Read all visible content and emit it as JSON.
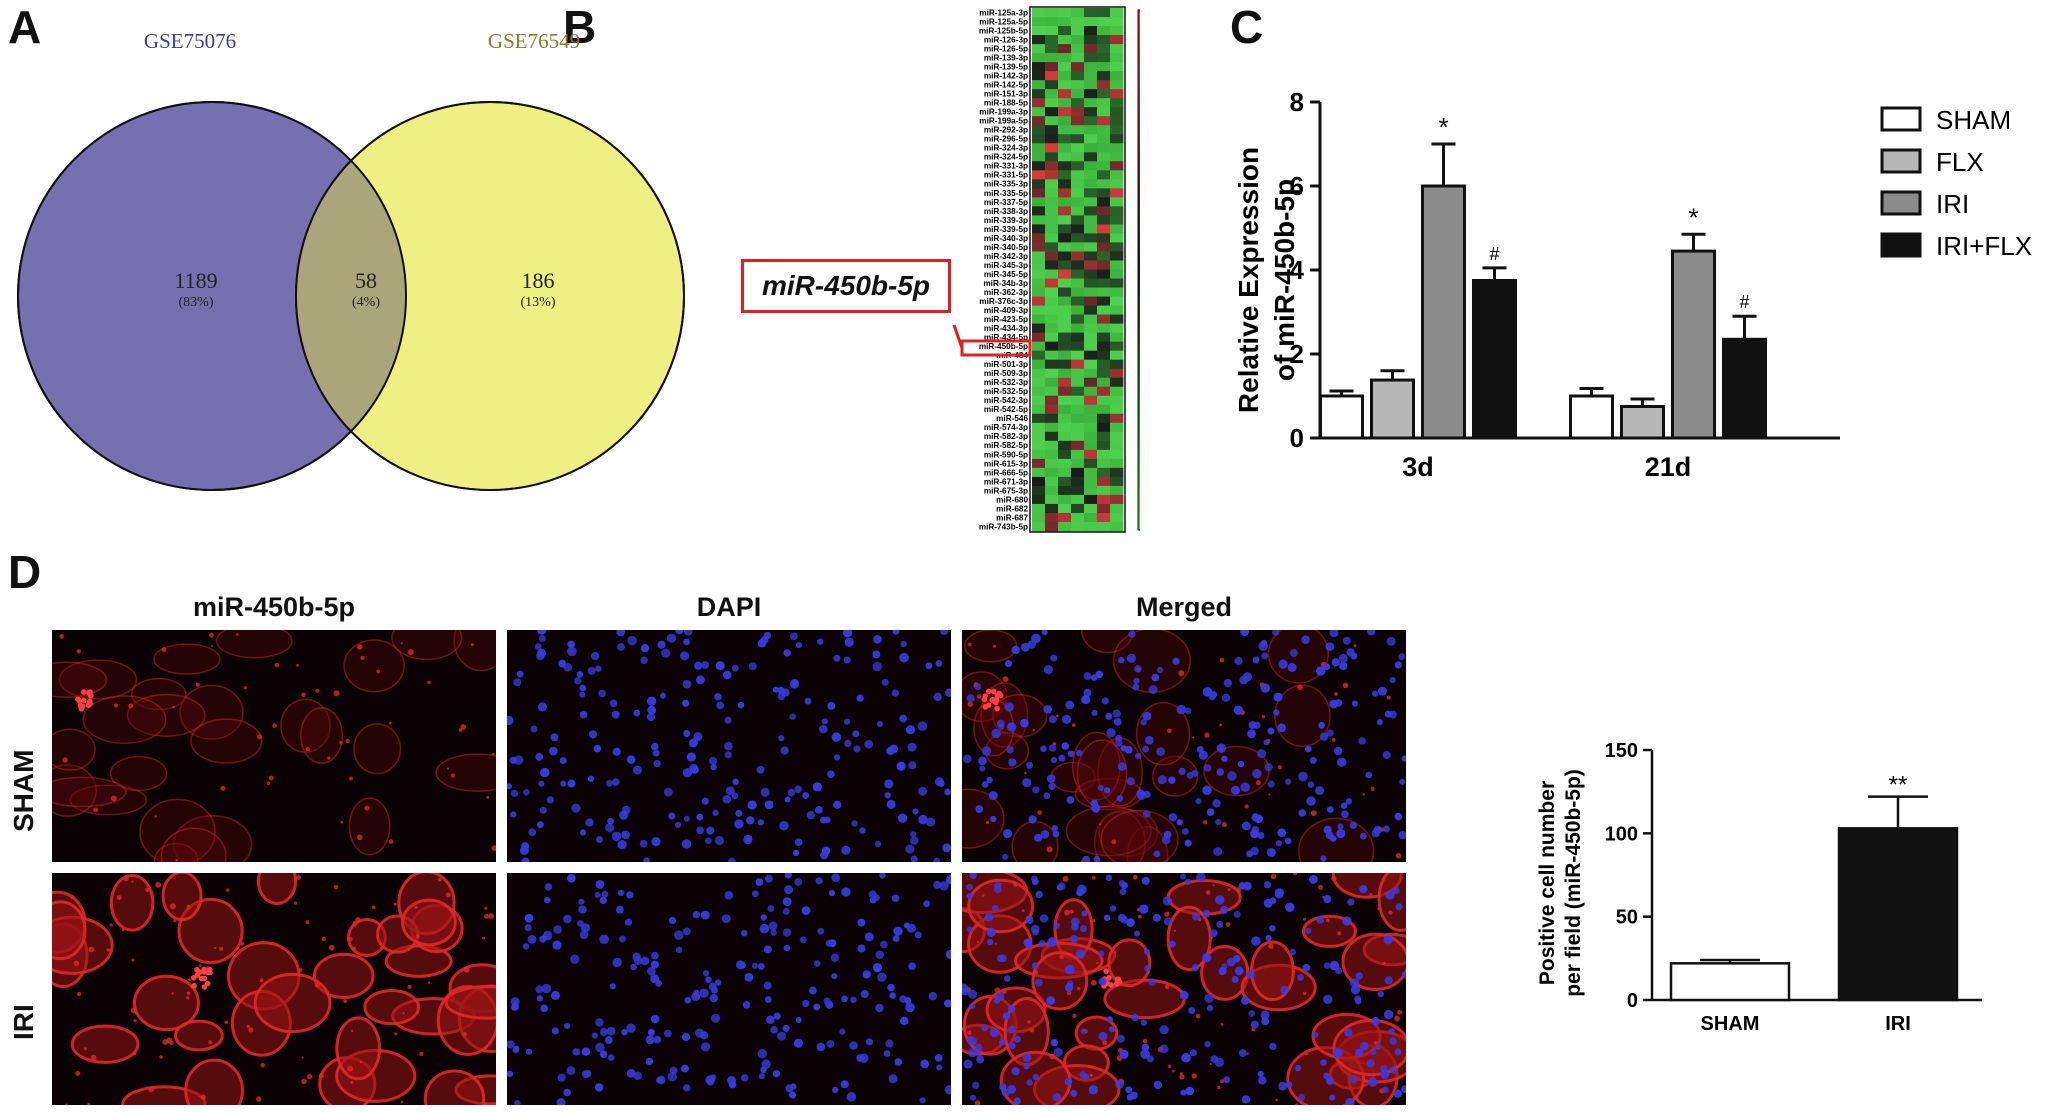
{
  "panels": {
    "a": "A",
    "b": "B",
    "c": "C",
    "d": "D"
  },
  "venn": {
    "left_title": "GSE75076",
    "right_title": "GSE76549",
    "left_count": "1189",
    "left_pct": "(83%)",
    "overlap_count": "58",
    "overlap_pct": "(4%)",
    "right_count": "186",
    "right_pct": "(13%)",
    "colors": {
      "left": "#7670b0",
      "right": "#eff084",
      "overlap": "#aba57c",
      "left_title": "#3c3c9c",
      "right_title": "#8a7a2a"
    }
  },
  "heatmap": {
    "callout": "miR-450b-5p",
    "genes": [
      "miR-125a-3p",
      "miR-125a-5p",
      "miR-125b-5p",
      "miR-126-3p",
      "miR-126-5p",
      "miR-139-3p",
      "miR-139-5p",
      "miR-142-3p",
      "miR-142-5p",
      "miR-151-3p",
      "miR-188-5p",
      "miR-199a-3p",
      "miR-199a-5p",
      "miR-292-3p",
      "miR-296-5p",
      "miR-324-3p",
      "miR-324-5p",
      "miR-331-3p",
      "miR-331-5p",
      "miR-335-3p",
      "miR-335-5p",
      "miR-337-5p",
      "miR-338-3p",
      "miR-339-3p",
      "miR-339-5p",
      "miR-340-3p",
      "miR-340-5p",
      "miR-342-3p",
      "miR-345-3p",
      "miR-345-5p",
      "miR-34b-3p",
      "miR-362-3p",
      "miR-376c-3p",
      "miR-409-3p",
      "miR-423-5p",
      "miR-434-3p",
      "miR-434-5p",
      "miR-450b-5p",
      "miR-484",
      "miR-501-3p",
      "miR-509-3p",
      "miR-532-3p",
      "miR-532-5p",
      "miR-542-3p",
      "miR-542-5p",
      "miR-546",
      "miR-574-3p",
      "miR-582-3p",
      "miR-582-5p",
      "miR-590-5p",
      "miR-615-3p",
      "miR-666-5p",
      "miR-671-3p",
      "miR-675-3p",
      "miR-680",
      "miR-682",
      "miR-687",
      "miR-743b-5p"
    ],
    "scale_ticks": [
      "800",
      "600",
      "400",
      "200"
    ],
    "colors": {
      "high": "#d63b3b",
      "mid": "#1a1a1a",
      "low": "#4fd24f",
      "callout": "#e02020"
    }
  },
  "chart_data": [
    {
      "type": "bar",
      "panel": "C",
      "ylabel": "Relative Expression of miR-450b-5p",
      "ylabel_lines": [
        "Relative Expression",
        "of miR-450b-5p"
      ],
      "categories": [
        "3d",
        "21d"
      ],
      "ylim": [
        0,
        8
      ],
      "yticks": [
        "0",
        "2",
        "4",
        "6",
        "8"
      ],
      "series": [
        {
          "name": "SHAM",
          "values": [
            1.0,
            1.0
          ],
          "errors": [
            0.12,
            0.18
          ],
          "color": "#ffffff"
        },
        {
          "name": "FLX",
          "values": [
            1.38,
            0.75
          ],
          "errors": [
            0.22,
            0.18
          ],
          "color": "#b8b8b8"
        },
        {
          "name": "IRI",
          "values": [
            6.0,
            4.45
          ],
          "errors": [
            1.0,
            0.4
          ],
          "color": "#8c8c8c"
        },
        {
          "name": "IRI+FLX",
          "values": [
            3.75,
            2.35
          ],
          "errors": [
            0.3,
            0.55
          ],
          "color": "#111111"
        }
      ],
      "annotations": [
        {
          "category": "3d",
          "series": "IRI",
          "text": "*"
        },
        {
          "category": "3d",
          "series": "IRI+FLX",
          "text": "#"
        },
        {
          "category": "21d",
          "series": "IRI",
          "text": "*"
        },
        {
          "category": "21d",
          "series": "IRI+FLX",
          "text": "#"
        }
      ],
      "legend_position": "right"
    },
    {
      "type": "bar",
      "panel": "D",
      "ylabel": "Positive cell number per field (miR-450b-5p)",
      "ylabel_lines": [
        "Positive cell number",
        "per field (miR-450b-5p)"
      ],
      "categories": [
        "SHAM",
        "IRI"
      ],
      "ylim": [
        0,
        150
      ],
      "yticks": [
        "0",
        "50",
        "100",
        "150"
      ],
      "values": [
        22,
        103
      ],
      "errors": [
        2,
        19
      ],
      "colors": [
        "#ffffff",
        "#111111"
      ],
      "annotations": [
        {
          "category": "IRI",
          "text": "**"
        }
      ]
    }
  ],
  "micrographs": {
    "columns": [
      "miR-450b-5p",
      "DAPI",
      "Merged"
    ],
    "rows": [
      "SHAM",
      "IRI"
    ],
    "colors": {
      "background": "#0a0204",
      "red": "#e0282a",
      "blue": "#3a3ae0"
    }
  }
}
